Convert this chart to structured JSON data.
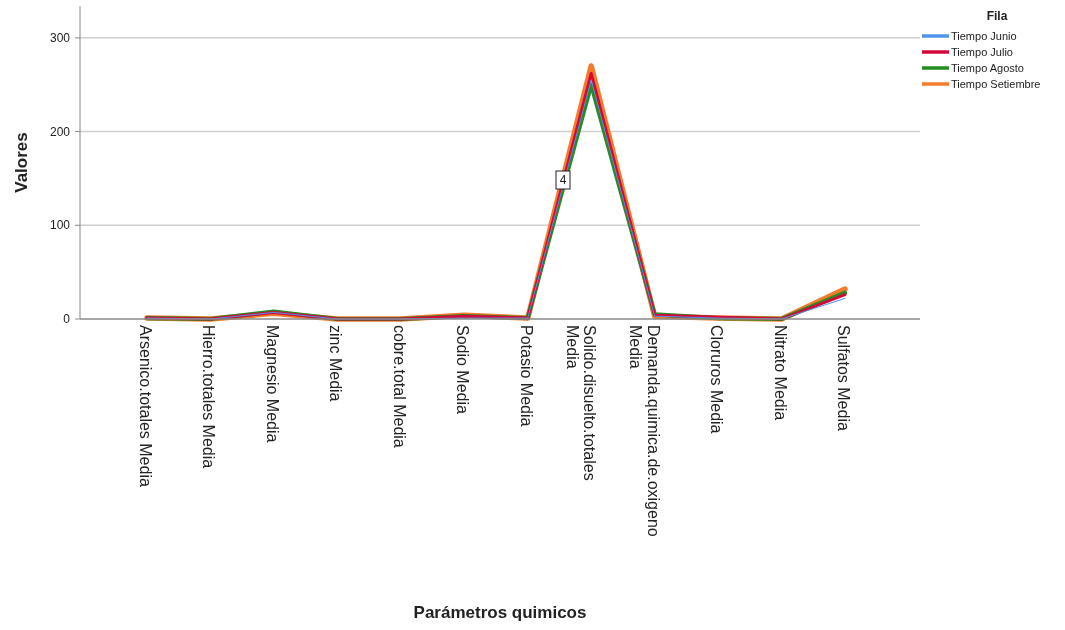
{
  "chart_data": {
    "type": "line",
    "xlabel": "Parámetros quimicos",
    "ylabel": "Valores",
    "legend_title": "Fila",
    "legend": "top right",
    "grid": "y",
    "marker": "none",
    "line_style": "solid",
    "categories": [
      "Arsenico.totales Media",
      "Hierro.totales Media",
      "Magnesio Media",
      "zinc Media",
      "cobre.total Media",
      "Sodio Media",
      "Potasio Media",
      "Solido.disuelto.totales Media",
      "Demanda.quimica.de.oxigeno Media",
      "Cloruros Media",
      "Nitrato Media",
      "Sulfatos Media"
    ],
    "ylim": [
      0,
      334
    ],
    "yticks": [
      0,
      100,
      200,
      300
    ],
    "annotations": [
      "4"
    ],
    "series": [
      {
        "name": "Tiempo Junio",
        "color": "#4f94e8",
        "values": [
          1,
          0,
          7,
          0,
          0,
          1,
          1,
          255,
          3,
          1,
          0,
          22
        ]
      },
      {
        "name": "Tiempo Julio",
        "color": "#d6083b",
        "values": [
          1,
          0,
          7,
          0,
          0,
          3,
          1,
          262,
          4,
          2,
          0,
          26
        ]
      },
      {
        "name": "Tiempo Agosto",
        "color": "#238c23",
        "values": [
          1,
          0,
          8,
          0,
          0,
          3,
          1,
          250,
          5,
          1,
          0,
          28
        ]
      },
      {
        "name": "Tiempo Setiembre",
        "color": "#f47b2b",
        "values": [
          1,
          0,
          6,
          0,
          0,
          4,
          1,
          270,
          3,
          1,
          0,
          32
        ]
      }
    ]
  }
}
